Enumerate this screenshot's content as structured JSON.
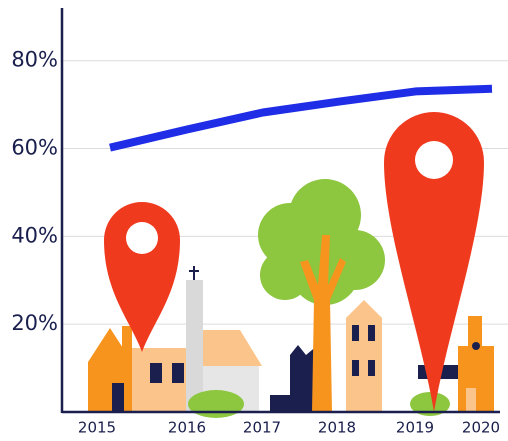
{
  "chart_data": {
    "type": "line",
    "categories": [
      "2015",
      "2016",
      "2017",
      "2018",
      "2019",
      "2020"
    ],
    "series": [
      {
        "color": "#1f2ee6",
        "values": [
          60.2,
          64.3,
          68.2,
          70.7,
          73,
          73.6
        ]
      }
    ],
    "ylim": [
      0,
      92
    ],
    "yticks": [
      {
        "value": 20,
        "label": "20%"
      },
      {
        "value": 40,
        "label": "40%"
      },
      {
        "value": 60,
        "label": "60%"
      },
      {
        "value": 80,
        "label": "80%"
      }
    ],
    "grid": true
  }
}
